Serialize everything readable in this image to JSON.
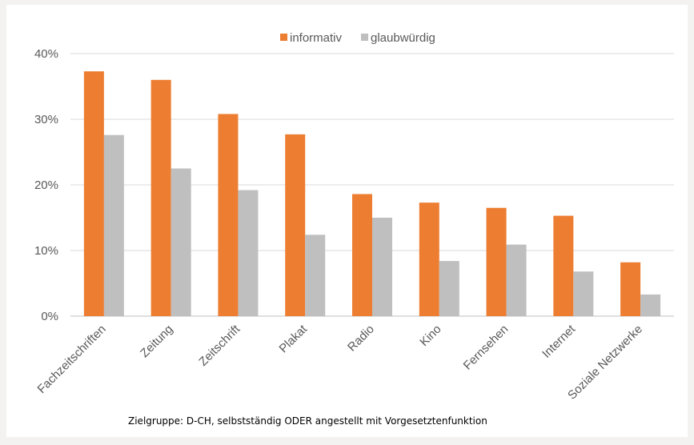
{
  "chart_data": {
    "type": "bar",
    "categories": [
      "Fachzeitschriften",
      "Zeitung",
      "Zeitschrift",
      "Plakat",
      "Radio",
      "Kino",
      "Fernsehen",
      "Internet",
      "Soziale Netzwerke"
    ],
    "series": [
      {
        "name": "informativ",
        "color": "#ed7d31",
        "values": [
          37.3,
          36.0,
          30.8,
          27.7,
          18.6,
          17.3,
          16.5,
          15.3,
          8.2
        ]
      },
      {
        "name": "glaubwürdig",
        "color": "#bfbfbf",
        "values": [
          27.6,
          22.5,
          19.2,
          12.4,
          15.0,
          8.4,
          10.9,
          6.8,
          3.3
        ]
      }
    ],
    "ylim": [
      0,
      40
    ],
    "yticks": [
      "0%",
      "10%",
      "20%",
      "30%",
      "40%"
    ],
    "grid": true,
    "legend_position": "top",
    "footnote": "Zielgruppe: D-CH, selbstständig ODER angestellt mit Vorgesetztenfunktion"
  }
}
